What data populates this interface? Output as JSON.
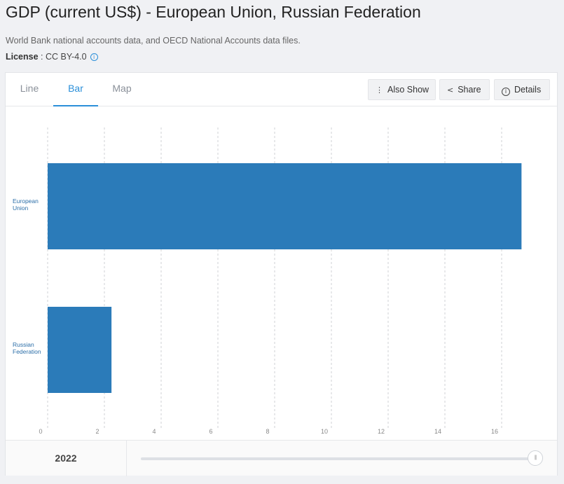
{
  "header": {
    "title": "GDP (current US$) - European Union, Russian Federation",
    "source": "World Bank national accounts data, and OECD National Accounts data files.",
    "license_label": "License",
    "license_value": " : CC BY-4.0"
  },
  "tabs": [
    {
      "label": "Line",
      "active": false
    },
    {
      "label": "Bar",
      "active": true
    },
    {
      "label": "Map",
      "active": false
    }
  ],
  "toolbar": {
    "also_show_label": "Also Show",
    "share_label": "Share",
    "details_label": "Details"
  },
  "footer": {
    "year": "2022"
  },
  "colors": {
    "bar": "#2b7bb9",
    "accent": "#2b8fd9"
  },
  "chart_data": {
    "type": "bar",
    "orientation": "horizontal",
    "categories": [
      "European Union",
      "Russian Federation"
    ],
    "category_lines": [
      [
        "European",
        "Union"
      ],
      [
        "Russian",
        "Federation"
      ]
    ],
    "values": [
      16.7,
      2.25
    ],
    "xlim": [
      0,
      17.5
    ],
    "xticks": [
      0,
      2,
      4,
      6,
      8,
      10,
      12,
      14,
      16
    ],
    "grid": true
  }
}
